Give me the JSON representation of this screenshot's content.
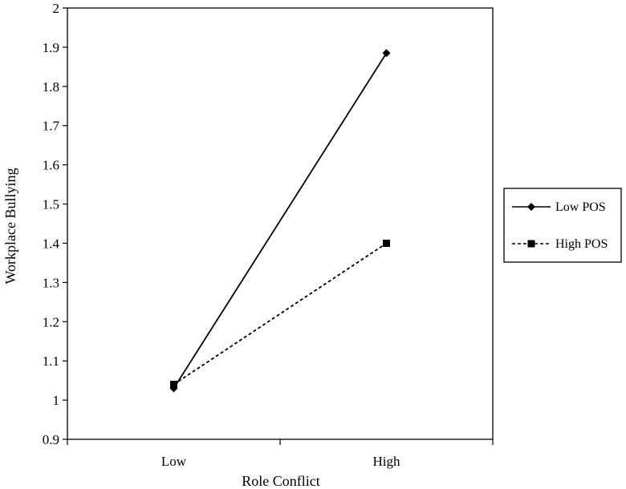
{
  "chart_data": {
    "type": "line",
    "title": "",
    "xlabel": "Role Conflict",
    "ylabel": "Workplace Bullying",
    "categories": [
      "Low",
      "High"
    ],
    "ylim": [
      0.9,
      2
    ],
    "yticks": [
      "0.9",
      "1",
      "1.1",
      "1.2",
      "1.3",
      "1.4",
      "1.5",
      "1.6",
      "1.7",
      "1.8",
      "1.9",
      "2"
    ],
    "grid": false,
    "legend_position": "right",
    "series": [
      {
        "name": "Low POS",
        "values": [
          1.03,
          1.885
        ],
        "marker": "diamond",
        "line_style": "solid",
        "color": "#000000"
      },
      {
        "name": "High POS",
        "values": [
          1.04,
          1.4
        ],
        "marker": "square",
        "line_style": "dashed",
        "color": "#000000"
      }
    ]
  }
}
